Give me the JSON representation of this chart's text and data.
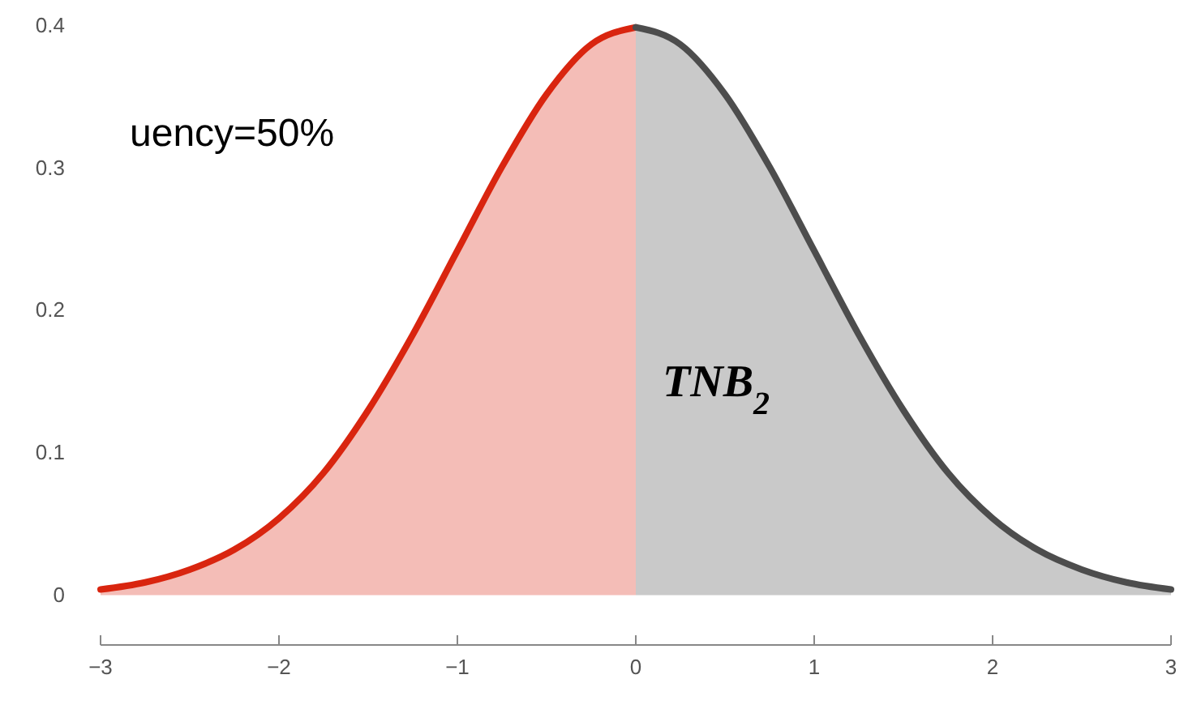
{
  "chart_data": {
    "type": "area",
    "series": [
      {
        "color": "#d9250f",
        "x": [
          -3,
          -2.75,
          -2.5,
          -2.25,
          -2,
          -1.75,
          -1.5,
          -1.25,
          -1,
          -0.75,
          -0.5,
          -0.25,
          0
        ],
        "values": [
          0.004,
          0.009,
          0.018,
          0.032,
          0.054,
          0.086,
          0.13,
          0.183,
          0.242,
          0.301,
          0.352,
          0.387,
          0.399
        ]
      },
      {
        "color": "#4d4d4d",
        "x": [
          0,
          0.25,
          0.5,
          0.75,
          1,
          1.25,
          1.5,
          1.75,
          2,
          2.25,
          2.5,
          2.75,
          3
        ],
        "values": [
          0.399,
          0.387,
          0.352,
          0.301,
          0.242,
          0.183,
          0.13,
          0.086,
          0.054,
          0.032,
          0.018,
          0.009,
          0.004
        ]
      }
    ],
    "xlim": [
      -3,
      3
    ],
    "xticks": [
      {
        "value": -3,
        "label": "−3"
      },
      {
        "value": -2,
        "label": "−2"
      },
      {
        "value": -1,
        "label": "−1"
      },
      0,
      1,
      2,
      3
    ],
    "ylim": [
      -0.035,
      0.4
    ],
    "yticks": [
      0,
      0.1,
      0.2,
      0.3,
      0.4
    ],
    "annotations": [
      "uency=50%",
      "TNB$_{2}$"
    ]
  }
}
